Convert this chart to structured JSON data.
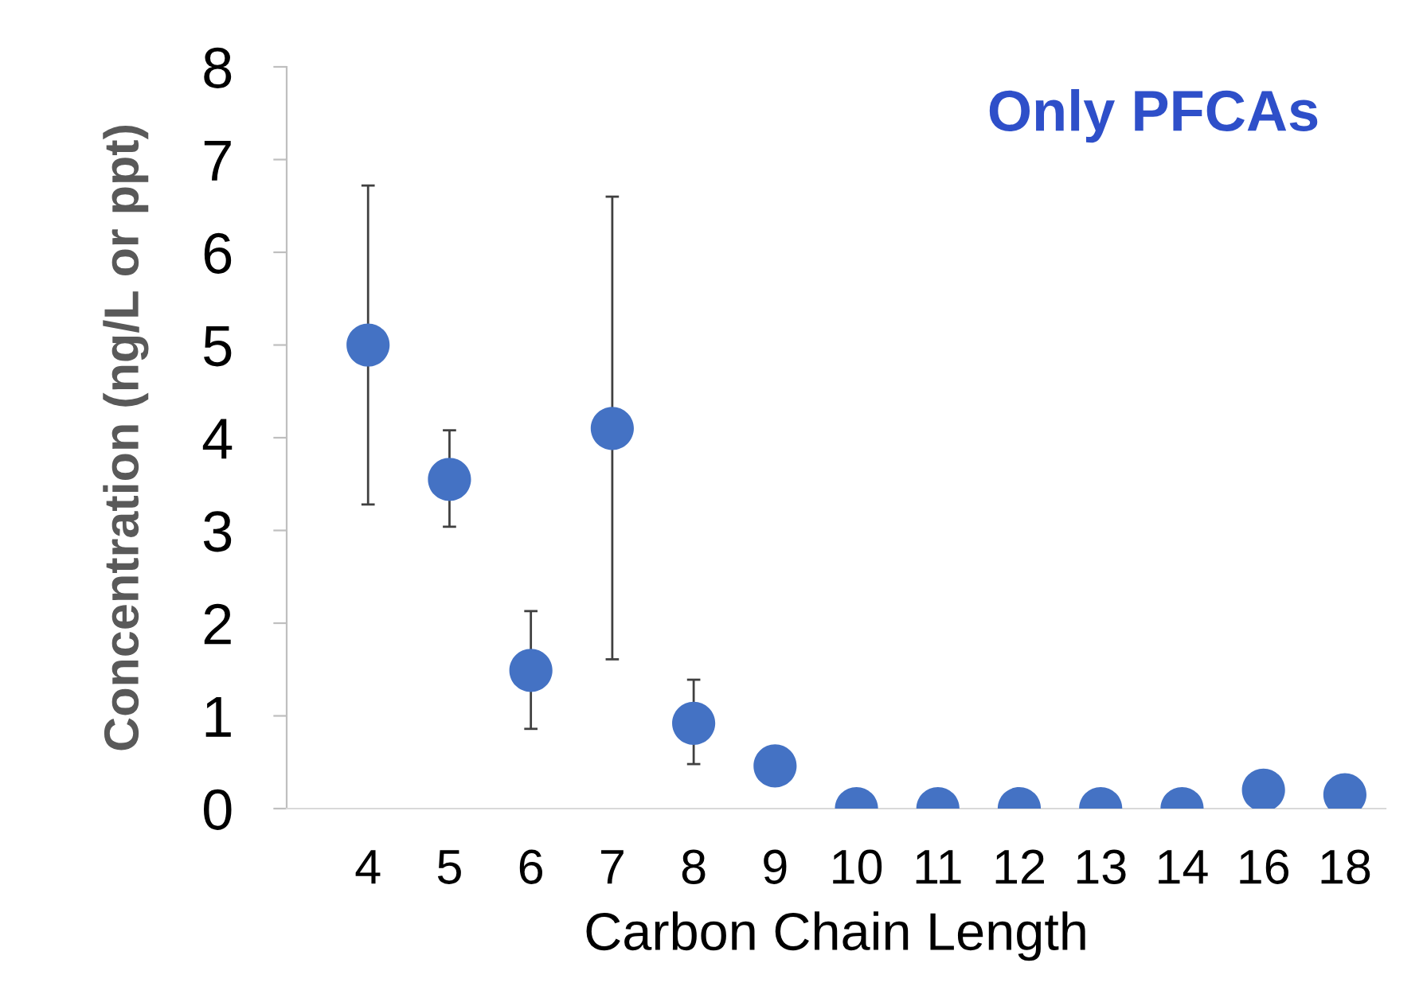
{
  "chart_data": {
    "type": "scatter",
    "title": "Only PFCAs",
    "xlabel": "Carbon Chain Length",
    "ylabel": "Concentration (ng/L or ppt)",
    "categories": [
      "4",
      "5",
      "6",
      "7",
      "8",
      "9",
      "10",
      "11",
      "12",
      "13",
      "14",
      "16",
      "18"
    ],
    "values": [
      5.0,
      3.55,
      1.49,
      4.1,
      0.92,
      0.46,
      0,
      0,
      0,
      0,
      0,
      0.2,
      0.15
    ],
    "errors": [
      [
        3.28,
        6.72
      ],
      [
        3.04,
        4.08
      ],
      [
        0.86,
        2.13
      ],
      [
        1.61,
        6.6
      ],
      [
        0.48,
        1.39
      ],
      null,
      null,
      null,
      null,
      null,
      null,
      null,
      null
    ],
    "color": "#4472c4",
    "marker": "circle",
    "ylim": [
      0,
      8
    ],
    "yticks": [
      0,
      1,
      2,
      3,
      4,
      5,
      6,
      7,
      8
    ],
    "grid": false
  }
}
